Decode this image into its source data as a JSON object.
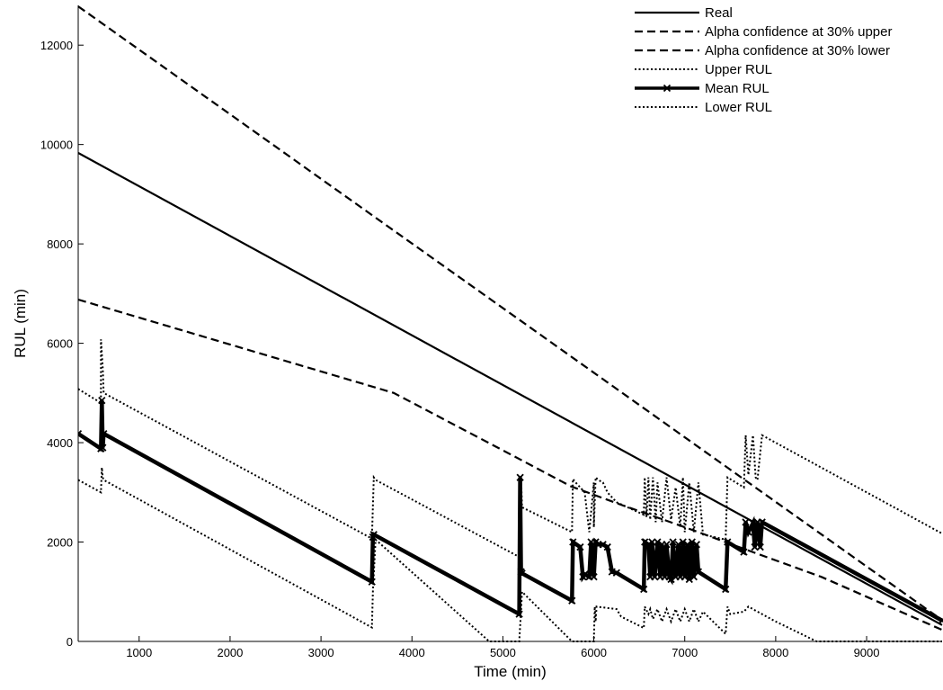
{
  "chart_data": {
    "type": "line",
    "xlabel": "Time (min)",
    "ylabel": "RUL (min)",
    "xlim": [
      330,
      9830
    ],
    "ylim": [
      0,
      12800
    ],
    "xticks": [
      1000,
      2000,
      3000,
      4000,
      5000,
      6000,
      7000,
      8000,
      9000
    ],
    "yticks": [
      0,
      2000,
      4000,
      6000,
      8000,
      10000,
      12000
    ],
    "grid": false,
    "legend_position": "top-right",
    "series": [
      {
        "name": "Real",
        "style": "solid",
        "x": [
          330,
          9830
        ],
        "y": [
          9830,
          330
        ]
      },
      {
        "name": "Alpha confidence at 30% upper",
        "style": "dashed",
        "x": [
          330,
          9830
        ],
        "y": [
          12780,
          429
        ]
      },
      {
        "name": "Alpha confidence at 30% lower",
        "style": "dashed",
        "x": [
          330,
          3800,
          5100,
          5750,
          6300,
          7000,
          7700,
          8500,
          9830
        ],
        "y": [
          6880,
          5000,
          3750,
          3120,
          2750,
          2300,
          1830,
          1300,
          231
        ]
      },
      {
        "name": "Upper RUL",
        "style": "dotted",
        "x": [
          330,
          580,
          580,
          600,
          610,
          3560,
          3580,
          3600,
          5180,
          5200,
          5210,
          5760,
          5770,
          5800,
          5850,
          5900,
          5950,
          6000,
          6000,
          6020,
          6050,
          6100,
          6150,
          6200,
          6250,
          6550,
          6560,
          6580,
          6600,
          6620,
          6650,
          6680,
          6700,
          6750,
          6800,
          6850,
          6900,
          6950,
          6980,
          7000,
          7050,
          7100,
          7150,
          7200,
          7450,
          7470,
          7650,
          7670,
          7700,
          7750,
          7780,
          7800,
          7850,
          9830
        ],
        "y": [
          5080,
          4800,
          6080,
          5500,
          5000,
          2070,
          3300,
          3250,
          1700,
          3330,
          2700,
          2200,
          3270,
          3200,
          3100,
          3000,
          2200,
          3200,
          2300,
          3300,
          3250,
          3200,
          3000,
          2900,
          2800,
          2550,
          3300,
          2500,
          3300,
          2450,
          3300,
          2400,
          3200,
          2400,
          3300,
          2450,
          3100,
          2300,
          3300,
          2200,
          3200,
          2200,
          3200,
          2150,
          2050,
          3300,
          3100,
          4150,
          3350,
          4150,
          3300,
          3250,
          4150,
          2170
        ]
      },
      {
        "name": "Mean RUL",
        "style": "solid-thick-markers",
        "x": [
          330,
          580,
          590,
          600,
          610,
          3560,
          3570,
          3580,
          5180,
          5190,
          5200,
          5210,
          5760,
          5770,
          5850,
          5880,
          5900,
          5950,
          5970,
          6000,
          6020,
          6050,
          6100,
          6150,
          6200,
          6250,
          6550,
          6560,
          6600,
          6620,
          6640,
          6670,
          6700,
          6730,
          6750,
          6780,
          6800,
          6830,
          6850,
          6870,
          6900,
          6930,
          6950,
          6980,
          7000,
          7030,
          7050,
          7080,
          7100,
          7130,
          7150,
          7450,
          7470,
          7650,
          7670,
          7700,
          7750,
          7770,
          7800,
          7830,
          7850,
          9830
        ],
        "y": [
          4180,
          3880,
          4850,
          3900,
          4180,
          1200,
          2100,
          2150,
          550,
          3300,
          1400,
          1370,
          820,
          2000,
          1900,
          1300,
          1350,
          1300,
          2000,
          1300,
          2000,
          1950,
          1950,
          1900,
          1400,
          1380,
          1050,
          2000,
          1950,
          1300,
          2000,
          1300,
          2000,
          1300,
          1950,
          1300,
          1950,
          1300,
          1250,
          2000,
          1300,
          1950,
          1300,
          2000,
          1300,
          1950,
          1250,
          2000,
          1300,
          1950,
          1400,
          1050,
          2000,
          1800,
          2400,
          2200,
          2380,
          1900,
          2400,
          1900,
          2400,
          420
        ]
      },
      {
        "name": "Lower RUL",
        "style": "dotted",
        "x": [
          330,
          580,
          590,
          600,
          610,
          3560,
          3570,
          3600,
          4850,
          5180,
          5200,
          5210,
          5760,
          5770,
          5800,
          6000,
          6010,
          6020,
          6030,
          6250,
          6300,
          6550,
          6560,
          6600,
          6620,
          6650,
          6700,
          6750,
          6800,
          6850,
          6900,
          6950,
          7000,
          7050,
          7100,
          7150,
          7200,
          7450,
          7470,
          7500,
          7650,
          7700,
          7800,
          8000,
          8450,
          8460,
          9830
        ],
        "y": [
          3250,
          3000,
          3500,
          3300,
          3250,
          280,
          1000,
          2050,
          0,
          0,
          620,
          1000,
          0,
          0,
          0,
          0,
          700,
          400,
          700,
          650,
          500,
          270,
          700,
          550,
          650,
          450,
          650,
          400,
          650,
          400,
          650,
          400,
          650,
          400,
          650,
          400,
          600,
          150,
          700,
          550,
          600,
          700,
          600,
          400,
          0,
          0,
          0
        ]
      }
    ]
  }
}
